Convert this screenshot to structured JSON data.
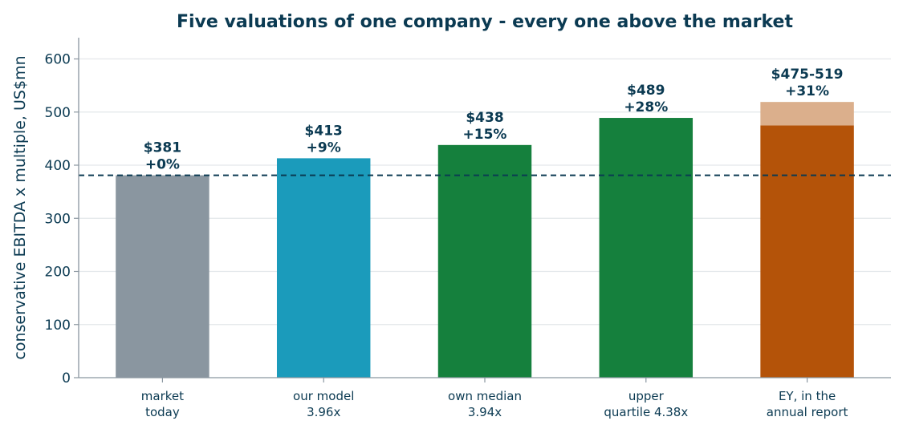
{
  "chart_data": {
    "type": "bar",
    "title": "Five valuations of one company - every one above the market",
    "ylabel": "conservative EBITDA x multiple, US$mn",
    "xlabel": "",
    "ylim": [
      0,
      640
    ],
    "yticks": [
      0,
      100,
      200,
      300,
      400,
      500,
      600
    ],
    "grid": "y",
    "categories": [
      [
        "market",
        "today"
      ],
      [
        "our model",
        "3.96x"
      ],
      [
        "own median",
        "3.94x"
      ],
      [
        "upper",
        "quartile 4.38x"
      ],
      [
        "EY, in the",
        "annual report"
      ]
    ],
    "values": [
      381,
      413,
      438,
      489,
      475
    ],
    "range_high": [
      null,
      null,
      null,
      null,
      519
    ],
    "labels": [
      [
        "$381",
        "+0%"
      ],
      [
        "$413",
        "+9%"
      ],
      [
        "$438",
        "+15%"
      ],
      [
        "$489",
        "+28%"
      ],
      [
        "$475-519",
        "+31%"
      ]
    ],
    "colors": [
      "#8a96a0",
      "#1b9bbb",
      "#15803d",
      "#15803d",
      "#b45309"
    ],
    "range_color": "#dbaf8c",
    "reference_line": {
      "value": 381,
      "style": "dashed",
      "color": "#0b3a52"
    }
  }
}
